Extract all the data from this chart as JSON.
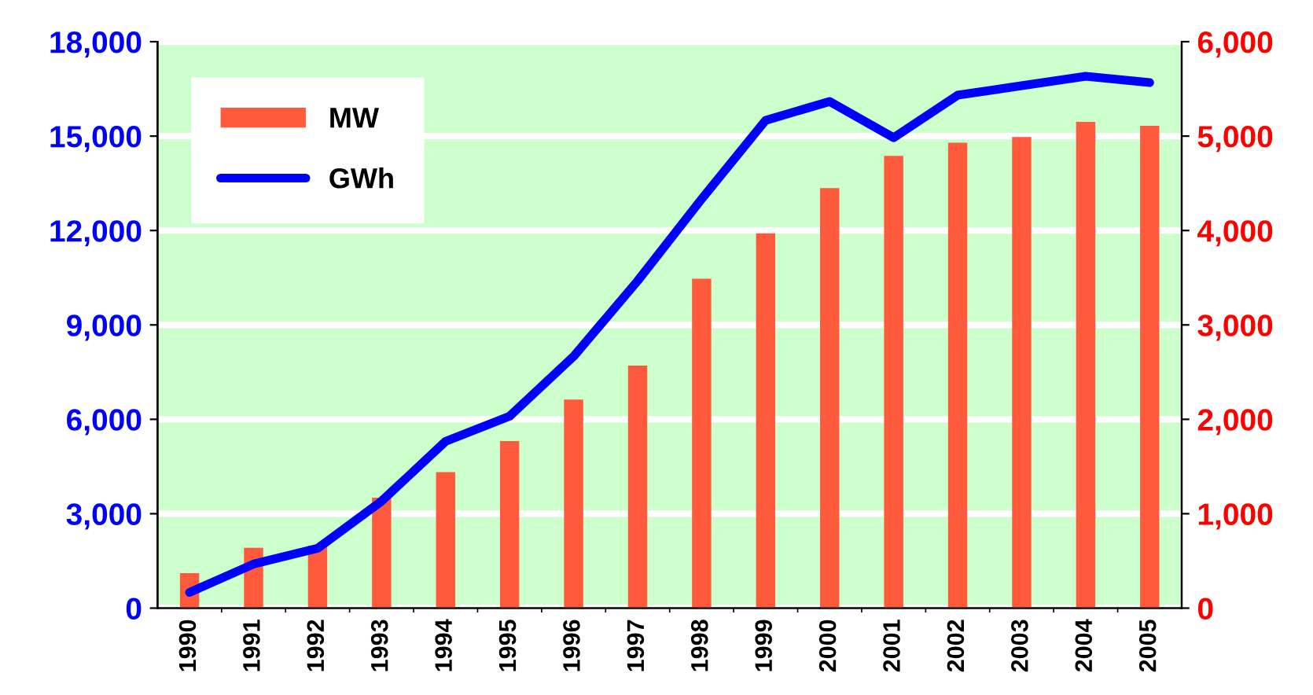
{
  "chart_data": {
    "type": "bar",
    "categories": [
      "1990",
      "1991",
      "1992",
      "1993",
      "1994",
      "1995",
      "1996",
      "1997",
      "1998",
      "1999",
      "2000",
      "2001",
      "2002",
      "2003",
      "2004",
      "2005"
    ],
    "series": [
      {
        "name": "MW",
        "axis": "y2",
        "color": "#ff5a3c",
        "values": [
          370,
          640,
          660,
          1170,
          1440,
          1770,
          2210,
          2570,
          3490,
          3970,
          4450,
          4790,
          4930,
          4990,
          5150,
          5110
        ]
      },
      {
        "name": "GWh",
        "type": "line",
        "color": "#0000ff",
        "values": [
          500,
          1400,
          1900,
          3400,
          5300,
          6100,
          8000,
          10400,
          13000,
          15500,
          16100,
          14950,
          16300,
          16600,
          16900,
          16700
        ]
      }
    ],
    "ylim": [
      0,
      18000
    ],
    "yticks": [
      {
        "value": 0,
        "label": "0"
      },
      {
        "value": 3000,
        "label": "3,000"
      },
      {
        "value": 6000,
        "label": "6,000"
      },
      {
        "value": 9000,
        "label": "9,000"
      },
      {
        "value": 12000,
        "label": "12,000"
      },
      {
        "value": 15000,
        "label": "15,000"
      },
      {
        "value": 18000,
        "label": "18,000"
      }
    ],
    "y2lim": [
      0,
      6000
    ],
    "y2ticks": [
      {
        "value": 0,
        "label": "0"
      },
      {
        "value": 1000,
        "label": "1,000"
      },
      {
        "value": 2000,
        "label": "2,000"
      },
      {
        "value": 3000,
        "label": "3,000"
      },
      {
        "value": 4000,
        "label": "4,000"
      },
      {
        "value": 5000,
        "label": "5,000"
      },
      {
        "value": 6000,
        "label": "6,000"
      }
    ],
    "grid": true,
    "legend": "top left",
    "marker": "none",
    "line_style": "solid"
  }
}
